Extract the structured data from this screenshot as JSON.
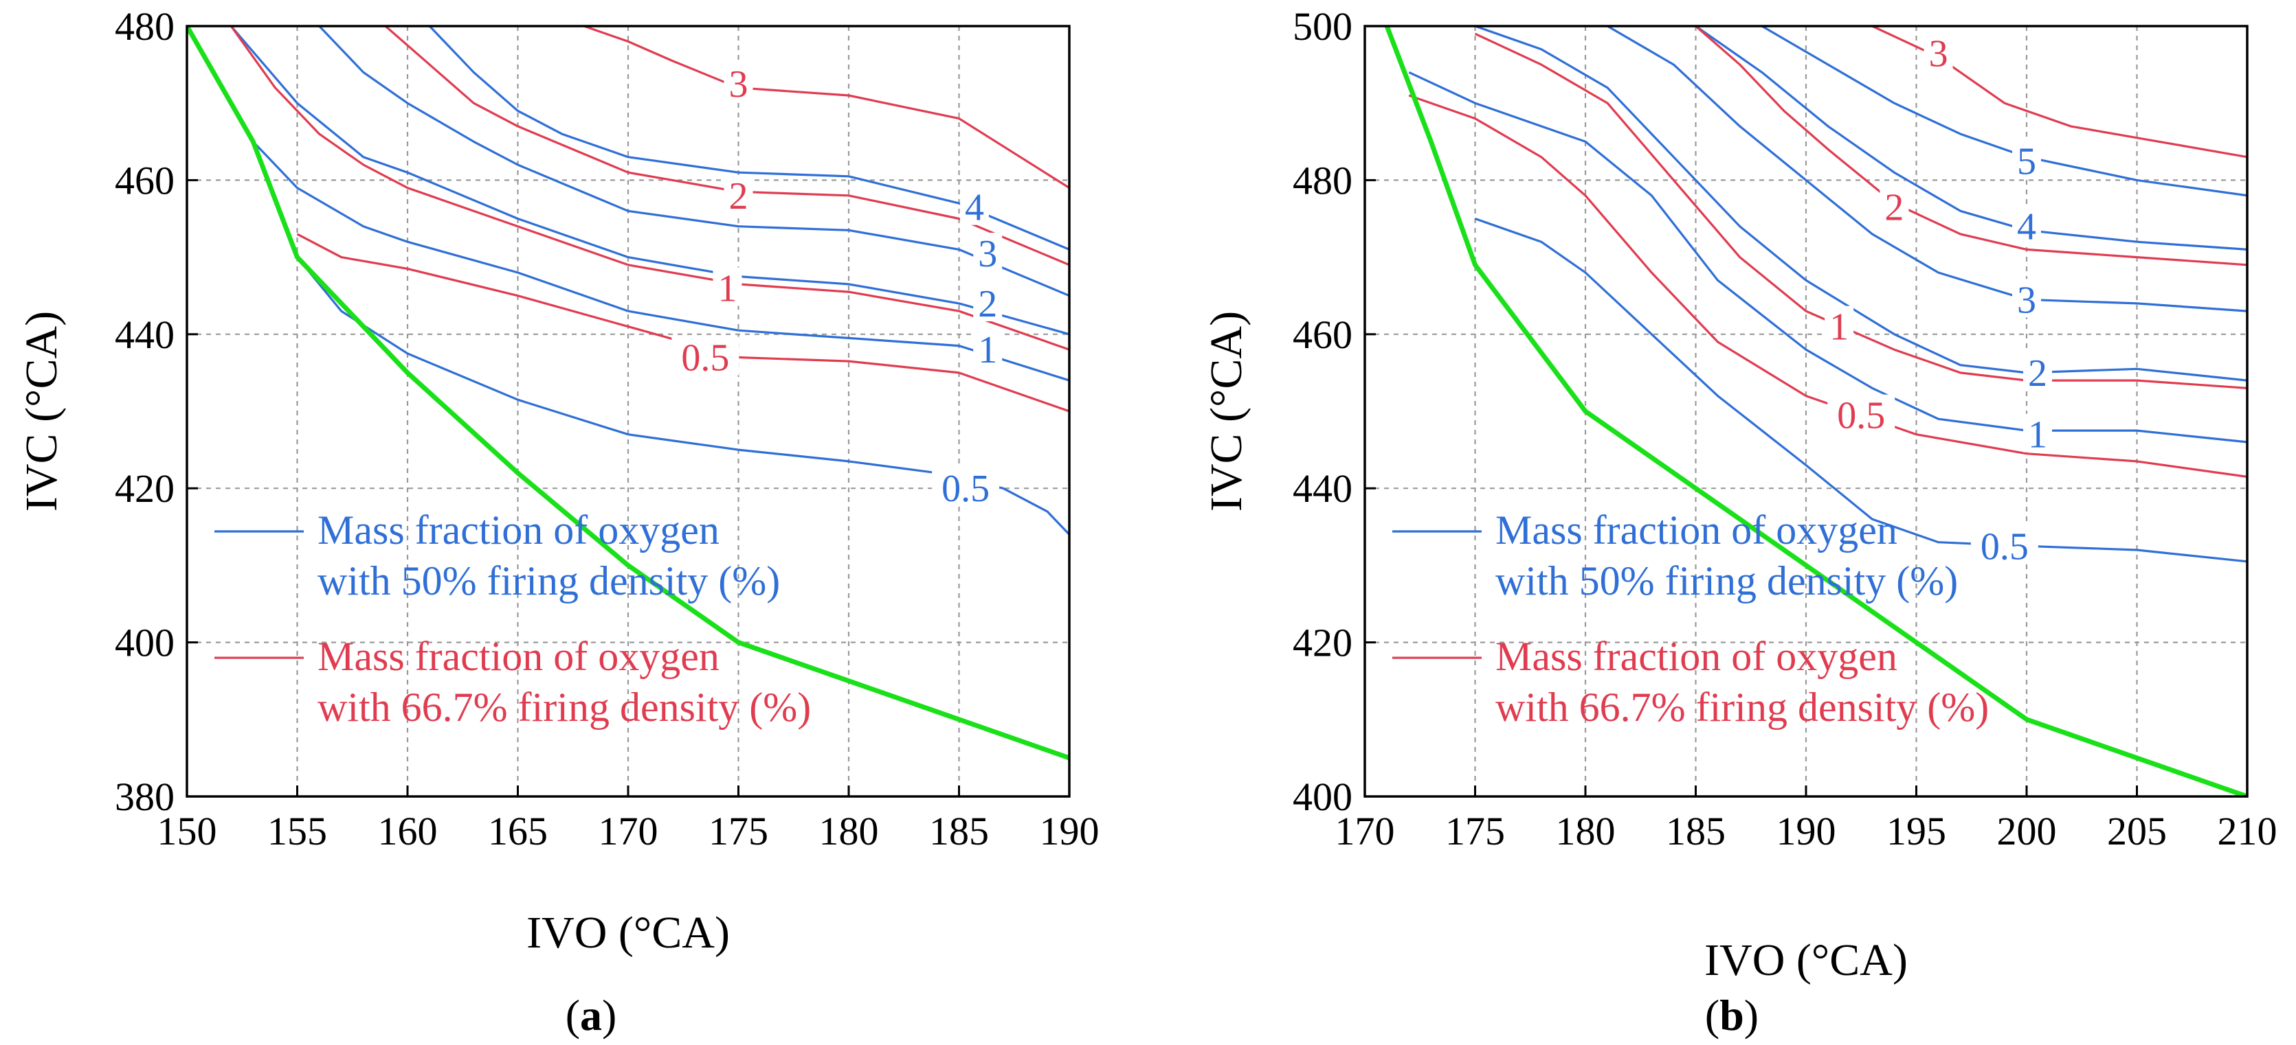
{
  "colors": {
    "blue": "#2f6fd6",
    "red": "#e03c50",
    "green": "#19e019",
    "grid": "#9a9a9a"
  },
  "legend_entries": [
    {
      "text1": "Mass fraction of oxygen",
      "text2": "with 50% firing density (%)",
      "color": "blue"
    },
    {
      "text1": "Mass fraction of oxygen",
      "text2": "with 66.7% firing density (%)",
      "color": "red"
    }
  ],
  "chart_data": [
    {
      "type": "line",
      "panel_label": "(a)",
      "panel_letter": "a",
      "xlabel": "IVO (°CA)",
      "ylabel": "IVC (°CA)",
      "xlim": [
        150,
        190
      ],
      "ylim": [
        380,
        480
      ],
      "xticks": [
        150,
        155,
        160,
        165,
        170,
        175,
        180,
        185,
        190
      ],
      "yticks": [
        380,
        400,
        420,
        440,
        460,
        480
      ],
      "grid": true,
      "legend_position": "lower-left",
      "boundary": {
        "name": "boundary",
        "color": "green",
        "points": [
          [
            150,
            480
          ],
          [
            153,
            465
          ],
          [
            155,
            450
          ],
          [
            160,
            435
          ],
          [
            165,
            422
          ],
          [
            170,
            410
          ],
          [
            175,
            400
          ],
          [
            180,
            395
          ],
          [
            185,
            390
          ],
          [
            190,
            385
          ]
        ]
      },
      "series": [
        {
          "name": "50% firing density",
          "color": "blue",
          "level": "0.5",
          "label_at": [
            185.3,
            420
          ],
          "points": [
            [
              155,
              450
            ],
            [
              157,
              443
            ],
            [
              160,
              437.5
            ],
            [
              165,
              431.5
            ],
            [
              170,
              427
            ],
            [
              175,
              425
            ],
            [
              180,
              423.5
            ],
            [
              184,
              422
            ],
            [
              187,
              420
            ],
            [
              189,
              417
            ],
            [
              190,
              414
            ]
          ]
        },
        {
          "name": "50% firing density",
          "color": "blue",
          "level": "1",
          "label_at": [
            186.3,
            438
          ],
          "points": [
            [
              153,
              465
            ],
            [
              155,
              459
            ],
            [
              158,
              454
            ],
            [
              160,
              452
            ],
            [
              165,
              448
            ],
            [
              170,
              443
            ],
            [
              175,
              440.5
            ],
            [
              180,
              439.5
            ],
            [
              185,
              438.5
            ],
            [
              190,
              434
            ]
          ]
        },
        {
          "name": "50% firing density",
          "color": "blue",
          "level": "2",
          "label_at": [
            186.3,
            444
          ],
          "points": [
            [
              152,
              480
            ],
            [
              155,
              470
            ],
            [
              158,
              463
            ],
            [
              160,
              461
            ],
            [
              165,
              455
            ],
            [
              170,
              450
            ],
            [
              175,
              447.5
            ],
            [
              180,
              446.5
            ],
            [
              185,
              444
            ],
            [
              190,
              440
            ]
          ]
        },
        {
          "name": "50% firing density",
          "color": "blue",
          "level": "3",
          "label_at": [
            186.3,
            450.5
          ],
          "points": [
            [
              156,
              480
            ],
            [
              158,
              474
            ],
            [
              160,
              470
            ],
            [
              163,
              465
            ],
            [
              165,
              462
            ],
            [
              170,
              456
            ],
            [
              175,
              454
            ],
            [
              180,
              453.5
            ],
            [
              185,
              451
            ],
            [
              190,
              445
            ]
          ]
        },
        {
          "name": "50% firing density",
          "color": "blue",
          "level": "4",
          "label_at": [
            185.7,
            456.5
          ],
          "points": [
            [
              161,
              480
            ],
            [
              163,
              474
            ],
            [
              165,
              469
            ],
            [
              167,
              466
            ],
            [
              170,
              463
            ],
            [
              175,
              461
            ],
            [
              180,
              460.5
            ],
            [
              185,
              457
            ],
            [
              190,
              451
            ]
          ]
        },
        {
          "name": "66.7% firing density",
          "color": "red",
          "level": "0.5",
          "label_at": [
            173.5,
            437
          ],
          "points": [
            [
              155,
              453
            ],
            [
              157,
              450
            ],
            [
              160,
              448.5
            ],
            [
              165,
              445
            ],
            [
              170,
              441
            ],
            [
              175,
              437
            ],
            [
              180,
              436.5
            ],
            [
              185,
              435
            ],
            [
              190,
              430
            ]
          ]
        },
        {
          "name": "66.7% firing density",
          "color": "red",
          "level": "1",
          "label_at": [
            174.5,
            446
          ],
          "points": [
            [
              152,
              480
            ],
            [
              154,
              472
            ],
            [
              156,
              466
            ],
            [
              158,
              462
            ],
            [
              160,
              459
            ],
            [
              165,
              454
            ],
            [
              170,
              449
            ],
            [
              175,
              446.5
            ],
            [
              180,
              445.5
            ],
            [
              185,
              443
            ],
            [
              190,
              438
            ]
          ]
        },
        {
          "name": "66.7% firing density",
          "color": "red",
          "level": "2",
          "label_at": [
            175,
            458
          ],
          "points": [
            [
              159,
              480
            ],
            [
              161,
              475
            ],
            [
              163,
              470
            ],
            [
              165,
              467
            ],
            [
              170,
              461
            ],
            [
              175,
              458.5
            ],
            [
              180,
              458
            ],
            [
              185,
              455
            ],
            [
              190,
              449
            ]
          ]
        },
        {
          "name": "66.7% firing density",
          "color": "red",
          "level": "3",
          "label_at": [
            175,
            472.5
          ],
          "points": [
            [
              168,
              480
            ],
            [
              170,
              478
            ],
            [
              172,
              475.5
            ],
            [
              175,
              472
            ],
            [
              180,
              471
            ],
            [
              185,
              468
            ],
            [
              190,
              459
            ]
          ]
        }
      ]
    },
    {
      "type": "line",
      "panel_label": "(b)",
      "panel_letter": "b",
      "xlabel": "IVO (°CA)",
      "ylabel": "IVC (°CA)",
      "xlim": [
        170,
        210
      ],
      "ylim": [
        400,
        500
      ],
      "xticks": [
        170,
        175,
        180,
        185,
        190,
        195,
        200,
        205,
        210
      ],
      "yticks": [
        400,
        420,
        440,
        460,
        480,
        500
      ],
      "grid": true,
      "legend_position": "lower-left",
      "boundary": {
        "name": "boundary",
        "color": "green",
        "points": [
          [
            171,
            500
          ],
          [
            173,
            485
          ],
          [
            175,
            469
          ],
          [
            180,
            450
          ],
          [
            185,
            440
          ],
          [
            190,
            430
          ],
          [
            195,
            420
          ],
          [
            200,
            410
          ],
          [
            205,
            405
          ],
          [
            210,
            400
          ]
        ]
      },
      "series": [
        {
          "name": "50% firing density",
          "color": "blue",
          "level": "0.5",
          "label_at": [
            199,
            432.5
          ],
          "points": [
            [
              175,
              475
            ],
            [
              178,
              472
            ],
            [
              180,
              468
            ],
            [
              183,
              460
            ],
            [
              186,
              452
            ],
            [
              190,
              443
            ],
            [
              193,
              436
            ],
            [
              196,
              433
            ],
            [
              200,
              432.5
            ],
            [
              205,
              432
            ],
            [
              210,
              430.5
            ]
          ]
        },
        {
          "name": "50% firing density",
          "color": "blue",
          "level": "1",
          "label_at": [
            200.5,
            447
          ],
          "points": [
            [
              172,
              494
            ],
            [
              175,
              490
            ],
            [
              180,
              485
            ],
            [
              183,
              478
            ],
            [
              186,
              467
            ],
            [
              190,
              458
            ],
            [
              193,
              453
            ],
            [
              196,
              449
            ],
            [
              200,
              447.5
            ],
            [
              205,
              447.5
            ],
            [
              210,
              446
            ]
          ]
        },
        {
          "name": "50% firing density",
          "color": "blue",
          "level": "2",
          "label_at": [
            200.5,
            455
          ],
          "points": [
            [
              175,
              500
            ],
            [
              178,
              497
            ],
            [
              181,
              492
            ],
            [
              184,
              483
            ],
            [
              187,
              474
            ],
            [
              190,
              467
            ],
            [
              194,
              460
            ],
            [
              197,
              456
            ],
            [
              200,
              455
            ],
            [
              205,
              455.5
            ],
            [
              210,
              454
            ]
          ]
        },
        {
          "name": "50% firing density",
          "color": "blue",
          "level": "3",
          "label_at": [
            200,
            464.5
          ],
          "points": [
            [
              181,
              500
            ],
            [
              184,
              495
            ],
            [
              187,
              487
            ],
            [
              190,
              480
            ],
            [
              193,
              473
            ],
            [
              196,
              468
            ],
            [
              200,
              464.5
            ],
            [
              205,
              464
            ],
            [
              210,
              463
            ]
          ]
        },
        {
          "name": "50% firing density",
          "color": "blue",
          "level": "4",
          "label_at": [
            200,
            474
          ],
          "points": [
            [
              185,
              500
            ],
            [
              188,
              494
            ],
            [
              191,
              487
            ],
            [
              194,
              481
            ],
            [
              197,
              476
            ],
            [
              200,
              473.5
            ],
            [
              205,
              472
            ],
            [
              210,
              471
            ]
          ]
        },
        {
          "name": "50% firing density",
          "color": "blue",
          "level": "5",
          "label_at": [
            200,
            482.5
          ],
          "points": [
            [
              188,
              500
            ],
            [
              191,
              495
            ],
            [
              194,
              490
            ],
            [
              197,
              486
            ],
            [
              200,
              483
            ],
            [
              205,
              480
            ],
            [
              210,
              478
            ]
          ]
        },
        {
          "name": "66.7% firing density",
          "color": "red",
          "level": "0.5",
          "label_at": [
            192.5,
            449.5
          ],
          "points": [
            [
              172,
              491
            ],
            [
              175,
              488
            ],
            [
              178,
              483
            ],
            [
              180,
              478
            ],
            [
              183,
              468
            ],
            [
              186,
              459
            ],
            [
              190,
              452
            ],
            [
              195,
              447
            ],
            [
              200,
              444.5
            ],
            [
              205,
              443.5
            ],
            [
              210,
              441.5
            ]
          ]
        },
        {
          "name": "66.7% firing density",
          "color": "red",
          "level": "1",
          "label_at": [
            191.5,
            461
          ],
          "points": [
            [
              175,
              499
            ],
            [
              178,
              495
            ],
            [
              181,
              490
            ],
            [
              184,
              480
            ],
            [
              187,
              470
            ],
            [
              190,
              463
            ],
            [
              194,
              458
            ],
            [
              197,
              455
            ],
            [
              200,
              454
            ],
            [
              205,
              454
            ],
            [
              210,
              453
            ]
          ]
        },
        {
          "name": "66.7% firing density",
          "color": "red",
          "level": "2",
          "label_at": [
            194,
            476.5
          ],
          "points": [
            [
              185,
              500
            ],
            [
              187,
              495
            ],
            [
              189,
              489
            ],
            [
              191,
              484
            ],
            [
              194,
              477
            ],
            [
              197,
              473
            ],
            [
              200,
              471
            ],
            [
              205,
              470
            ],
            [
              210,
              469
            ]
          ]
        },
        {
          "name": "66.7% firing density",
          "color": "red",
          "level": "3",
          "label_at": [
            196,
            496.5
          ],
          "points": [
            [
              193,
              500
            ],
            [
              196,
              496
            ],
            [
              199,
              490
            ],
            [
              202,
              487
            ],
            [
              206,
              485
            ],
            [
              210,
              483
            ]
          ]
        }
      ]
    }
  ]
}
